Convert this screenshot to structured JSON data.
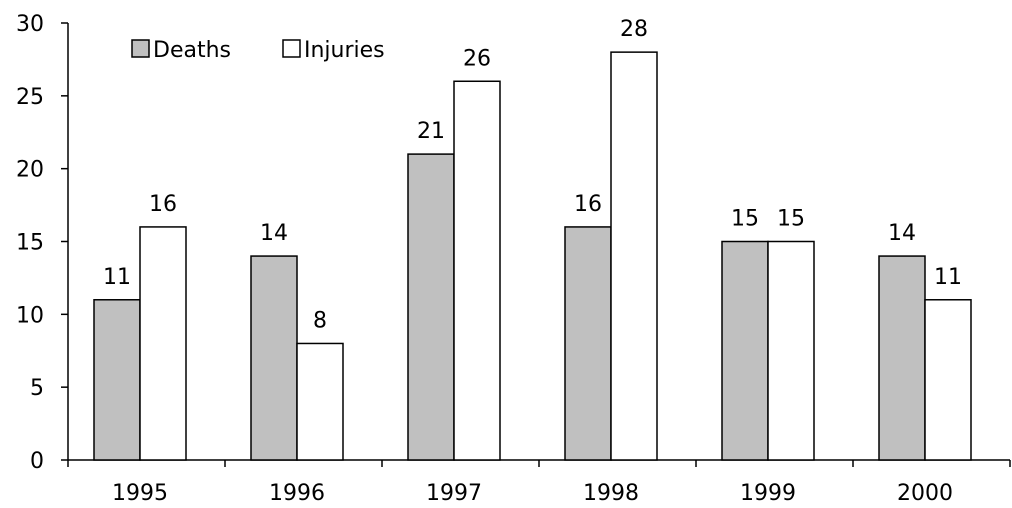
{
  "colors": {
    "deaths_fill": "#c0c0c0",
    "injuries_fill": "#ffffff",
    "stroke": "#000000"
  },
  "chart_data": {
    "type": "bar",
    "title": "",
    "xlabel": "",
    "ylabel": "",
    "categories": [
      "1995",
      "1996",
      "1997",
      "1998",
      "1999",
      "2000"
    ],
    "series": [
      {
        "name": "Deaths",
        "values": [
          11,
          14,
          21,
          16,
          15,
          14
        ]
      },
      {
        "name": "Injuries",
        "values": [
          16,
          8,
          26,
          28,
          15,
          11
        ]
      }
    ],
    "ylim": [
      0,
      30
    ],
    "yticks": [
      0,
      5,
      10,
      15,
      20,
      25,
      30
    ],
    "grid": false,
    "legend_position": "top-left",
    "data_labels": true
  }
}
